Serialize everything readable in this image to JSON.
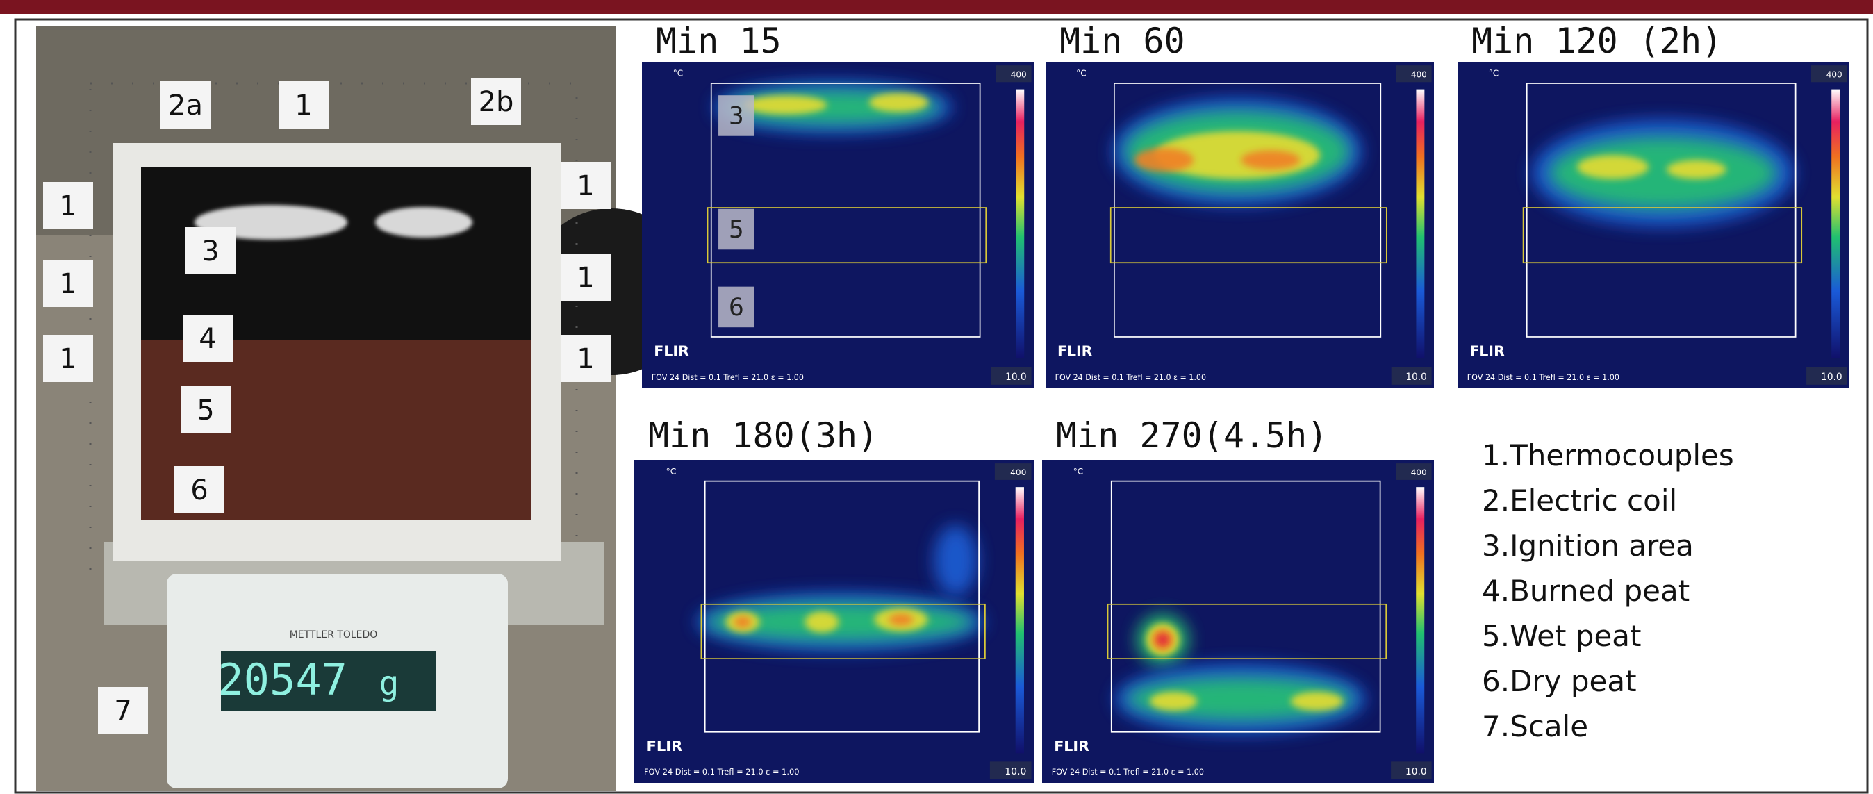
{
  "photo": {
    "labels": [
      "2a",
      "1",
      "2b",
      "1",
      "1",
      "1",
      "1",
      "1",
      "1",
      "3",
      "4",
      "5",
      "6",
      "7"
    ],
    "scale_brand": "METTLER TOLEDO",
    "scale_reading": "20547",
    "scale_unit": "g"
  },
  "thermal_images": [
    {
      "title": "Min 15",
      "unit": "°C",
      "max": "400",
      "min": "10.0",
      "brand": "FLIR",
      "info": "FOV 24  Dist = 0.1  Trefl = 21.0  ε = 1.00",
      "labels": [
        "3",
        "5",
        "6"
      ]
    },
    {
      "title": "Min 60",
      "unit": "°C",
      "max": "400",
      "min": "10.0",
      "brand": "FLIR",
      "info": "FOV 24  Dist = 0.1  Trefl = 21.0  ε = 1.00"
    },
    {
      "title": "Min 120 (2h)",
      "unit": "°C",
      "max": "400",
      "min": "10.0",
      "brand": "FLIR",
      "info": "FOV 24  Dist = 0.1  Trefl = 21.0  ε = 1.00"
    },
    {
      "title": "Min 180(3h)",
      "unit": "°C",
      "max": "400",
      "min": "10.0",
      "brand": "FLIR",
      "info": "FOV 24  Dist = 0.1  Trefl = 21.0  ε = 1.00"
    },
    {
      "title": "Min 270(4.5h)",
      "unit": "°C",
      "max": "400",
      "min": "10.0",
      "brand": "FLIR",
      "info": "FOV 24  Dist = 0.1  Trefl = 21.0  ε = 1.00"
    }
  ],
  "legend": [
    "1.Thermocouples",
    "2.Electric coil",
    "3.Ignition area",
    "4.Burned peat",
    "5.Wet peat",
    "6.Dry peat",
    "7.Scale"
  ]
}
